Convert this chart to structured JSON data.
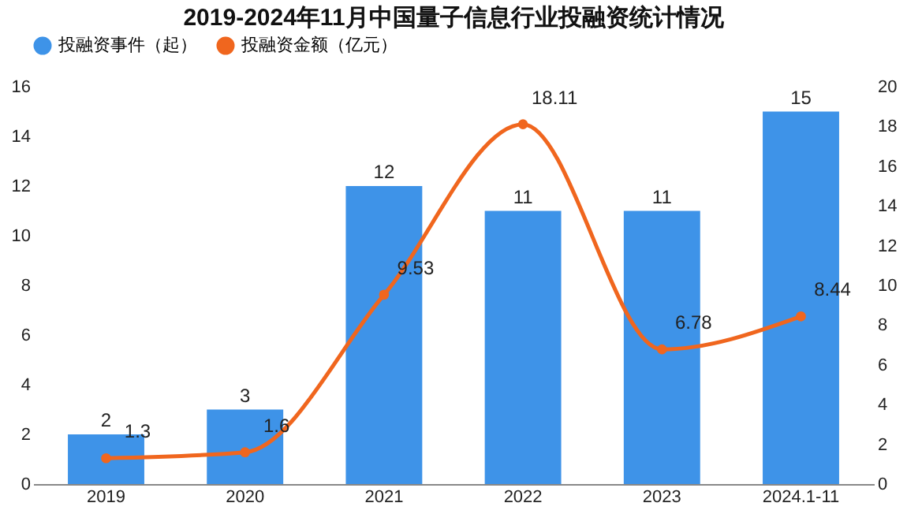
{
  "chart_data": {
    "type": "bar",
    "title": "2019-2024年11月中国量子信息行业投融资统计情况",
    "categories": [
      "2019",
      "2020",
      "2021",
      "2022",
      "2023",
      "2024.1-11"
    ],
    "series": [
      {
        "name": "投融资事件（起）",
        "color": "#3e93e8",
        "values": [
          2,
          3,
          12,
          11,
          11,
          15
        ]
      },
      {
        "name": "投融资金额（亿元）",
        "type": "line",
        "axis": "y2",
        "color": "#f0661e",
        "values": [
          1.3,
          1.6,
          9.53,
          18.11,
          6.78,
          8.44
        ]
      }
    ],
    "ylim": [
      0,
      16
    ],
    "yticks": [
      0,
      2,
      4,
      6,
      8,
      10,
      12,
      14,
      16
    ],
    "y2lim": [
      0,
      20
    ],
    "y2ticks": [
      0,
      2,
      4,
      6,
      8,
      10,
      12,
      14,
      16,
      18,
      20
    ],
    "data_labels": true,
    "legend": "top",
    "grid": false,
    "marker": "circle",
    "line_style": "solid"
  }
}
